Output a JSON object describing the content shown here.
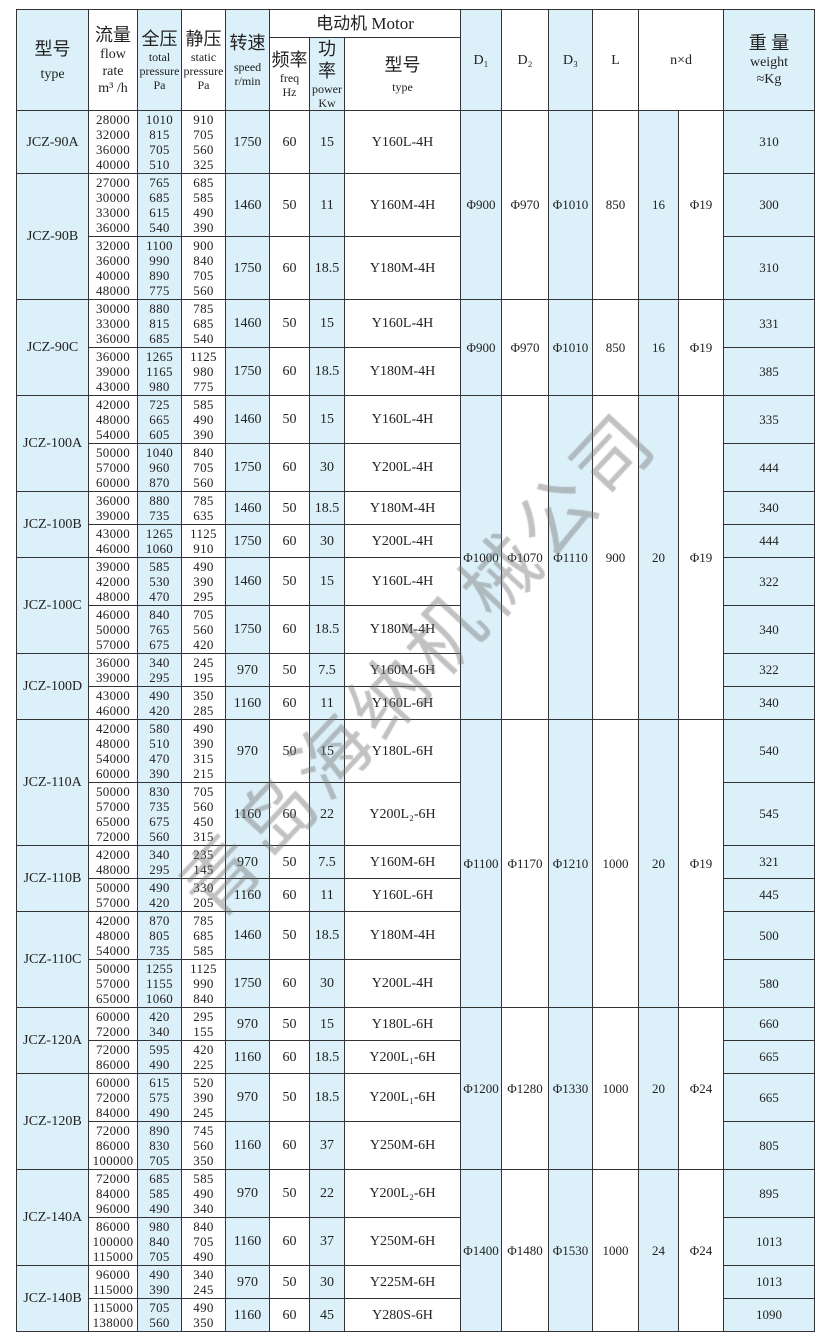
{
  "header": {
    "type": {
      "zh": "型号",
      "en": "type"
    },
    "flow": {
      "zh": "流量",
      "en1": "flow",
      "en2": "rate",
      "unit": "m³ /h"
    },
    "total": {
      "zh": "全压",
      "en1": "total",
      "en2": "pressure",
      "unit": "Pa"
    },
    "static": {
      "zh": "静压",
      "en1": "static",
      "en2": "pressure",
      "unit": "Pa"
    },
    "speed": {
      "zh": "转速",
      "en1": "speed",
      "unit": "r/min"
    },
    "motor": {
      "title": "电动机 Motor",
      "freq": {
        "zh": "频率",
        "en1": "freq",
        "unit": "Hz"
      },
      "power": {
        "zh": "功率",
        "en1": "power",
        "unit": "Kw"
      },
      "type": {
        "zh": "型号",
        "en": "type"
      }
    },
    "d1": "D₁",
    "d2": "D₂",
    "d3": "D₃",
    "l": "L",
    "nd": "n×d",
    "weight": {
      "zh": "重 量",
      "en1": "weight",
      "unit": "≈Kg"
    }
  },
  "watermark": "青岛海纳机械公司",
  "colors": {
    "highlight": "#dcf0f9",
    "border": "#333333"
  },
  "dim_groups": [
    {
      "d1": "Φ900",
      "d2": "Φ970",
      "d3": "Φ1010",
      "l": "850",
      "n": "16",
      "d": "Φ19"
    },
    {
      "d1": "Φ900",
      "d2": "Φ970",
      "d3": "Φ1010",
      "l": "850",
      "n": "16",
      "d": "Φ19"
    },
    {
      "d1": "Φ1000",
      "d2": "Φ1070",
      "d3": "Φ1110",
      "l": "900",
      "n": "20",
      "d": "Φ19"
    },
    {
      "d1": "Φ1100",
      "d2": "Φ1170",
      "d3": "Φ1210",
      "l": "1000",
      "n": "20",
      "d": "Φ19"
    },
    {
      "d1": "Φ1200",
      "d2": "Φ1280",
      "d3": "Φ1330",
      "l": "1000",
      "n": "20",
      "d": "Φ24"
    },
    {
      "d1": "Φ1400",
      "d2": "Φ1480",
      "d3": "Φ1530",
      "l": "1000",
      "n": "24",
      "d": "Φ24"
    }
  ],
  "models": [
    {
      "name": "JCZ-90A",
      "rows": [
        {
          "flow": [
            "28000",
            "32000",
            "36000",
            "40000"
          ],
          "total": [
            "1010",
            "815",
            "705",
            "510"
          ],
          "static": [
            "910",
            "705",
            "560",
            "325"
          ],
          "speed": "1750",
          "freq": "60",
          "power": "15",
          "motor": "Y160L-4H",
          "weight": "310"
        }
      ]
    },
    {
      "name": "JCZ-90B",
      "rows": [
        {
          "flow": [
            "27000",
            "30000",
            "33000",
            "36000"
          ],
          "total": [
            "765",
            "685",
            "615",
            "540"
          ],
          "static": [
            "685",
            "585",
            "490",
            "390"
          ],
          "speed": "1460",
          "freq": "50",
          "power": "11",
          "motor": "Y160M-4H",
          "weight": "300"
        },
        {
          "flow": [
            "32000",
            "36000",
            "40000",
            "48000"
          ],
          "total": [
            "1100",
            "990",
            "890",
            "775"
          ],
          "static": [
            "900",
            "840",
            "705",
            "560"
          ],
          "speed": "1750",
          "freq": "60",
          "power": "18.5",
          "motor": "Y180M-4H",
          "weight": "310"
        }
      ]
    },
    {
      "name": "JCZ-90C",
      "rows": [
        {
          "flow": [
            "30000",
            "33000",
            "36000"
          ],
          "total": [
            "880",
            "815",
            "685"
          ],
          "static": [
            "785",
            "685",
            "540"
          ],
          "speed": "1460",
          "freq": "50",
          "power": "15",
          "motor": "Y160L-4H",
          "weight": "331"
        },
        {
          "flow": [
            "36000",
            "39000",
            "43000"
          ],
          "total": [
            "1265",
            "1165",
            "980"
          ],
          "static": [
            "1125",
            "980",
            "775"
          ],
          "speed": "1750",
          "freq": "60",
          "power": "18.5",
          "motor": "Y180M-4H",
          "weight": "385"
        }
      ]
    },
    {
      "name": "JCZ-100A",
      "rows": [
        {
          "flow": [
            "42000",
            "48000",
            "54000"
          ],
          "total": [
            "725",
            "665",
            "605"
          ],
          "static": [
            "585",
            "490",
            "390"
          ],
          "speed": "1460",
          "freq": "50",
          "power": "15",
          "motor": "Y160L-4H",
          "weight": "335"
        },
        {
          "flow": [
            "50000",
            "57000",
            "60000"
          ],
          "total": [
            "1040",
            "960",
            "870"
          ],
          "static": [
            "840",
            "705",
            "560"
          ],
          "speed": "1750",
          "freq": "60",
          "power": "30",
          "motor": "Y200L-4H",
          "weight": "444"
        }
      ]
    },
    {
      "name": "JCZ-100B",
      "rows": [
        {
          "flow": [
            "36000",
            "39000"
          ],
          "total": [
            "880",
            "735"
          ],
          "static": [
            "785",
            "635"
          ],
          "speed": "1460",
          "freq": "50",
          "power": "18.5",
          "motor": "Y180M-4H",
          "weight": "340"
        },
        {
          "flow": [
            "43000",
            "46000"
          ],
          "total": [
            "1265",
            "1060"
          ],
          "static": [
            "1125",
            "910"
          ],
          "speed": "1750",
          "freq": "60",
          "power": "30",
          "motor": "Y200L-4H",
          "weight": "444"
        }
      ]
    },
    {
      "name": "JCZ-100C",
      "rows": [
        {
          "flow": [
            "39000",
            "42000",
            "48000"
          ],
          "total": [
            "585",
            "530",
            "470"
          ],
          "static": [
            "490",
            "390",
            "295"
          ],
          "speed": "1460",
          "freq": "50",
          "power": "15",
          "motor": "Y160L-4H",
          "weight": "322"
        },
        {
          "flow": [
            "46000",
            "50000",
            "57000"
          ],
          "total": [
            "840",
            "765",
            "675"
          ],
          "static": [
            "705",
            "560",
            "420"
          ],
          "speed": "1750",
          "freq": "60",
          "power": "18.5",
          "motor": "Y180M-4H",
          "weight": "340"
        }
      ]
    },
    {
      "name": "JCZ-100D",
      "rows": [
        {
          "flow": [
            "36000",
            "39000"
          ],
          "total": [
            "340",
            "295"
          ],
          "static": [
            "245",
            "195"
          ],
          "speed": "970",
          "freq": "50",
          "power": "7.5",
          "motor": "Y160M-6H",
          "weight": "322"
        },
        {
          "flow": [
            "43000",
            "46000"
          ],
          "total": [
            "490",
            "420"
          ],
          "static": [
            "350",
            "285"
          ],
          "speed": "1160",
          "freq": "60",
          "power": "11",
          "motor": "Y160L-6H",
          "weight": "340"
        }
      ]
    },
    {
      "name": "JCZ-110A",
      "rows": [
        {
          "flow": [
            "42000",
            "48000",
            "54000",
            "60000"
          ],
          "total": [
            "580",
            "510",
            "470",
            "390"
          ],
          "static": [
            "490",
            "390",
            "315",
            "215"
          ],
          "speed": "970",
          "freq": "50",
          "power": "15",
          "motor": "Y180L-6H",
          "weight": "540"
        },
        {
          "flow": [
            "50000",
            "57000",
            "65000",
            "72000"
          ],
          "total": [
            "830",
            "735",
            "675",
            "560"
          ],
          "static": [
            "705",
            "560",
            "450",
            "315"
          ],
          "speed": "1160",
          "freq": "60",
          "power": "22",
          "motor": "Y200L₂-6H",
          "weight": "545"
        }
      ]
    },
    {
      "name": "JCZ-110B",
      "rows": [
        {
          "flow": [
            "42000",
            "48000"
          ],
          "total": [
            "340",
            "295"
          ],
          "static": [
            "235",
            "145"
          ],
          "speed": "970",
          "freq": "50",
          "power": "7.5",
          "motor": "Y160M-6H",
          "weight": "321"
        },
        {
          "flow": [
            "50000",
            "57000"
          ],
          "total": [
            "490",
            "420"
          ],
          "static": [
            "330",
            "205"
          ],
          "speed": "1160",
          "freq": "60",
          "power": "11",
          "motor": "Y160L-6H",
          "weight": "445"
        }
      ]
    },
    {
      "name": "JCZ-110C",
      "rows": [
        {
          "flow": [
            "42000",
            "48000",
            "54000"
          ],
          "total": [
            "870",
            "805",
            "735"
          ],
          "static": [
            "785",
            "685",
            "585"
          ],
          "speed": "1460",
          "freq": "50",
          "power": "18.5",
          "motor": "Y180M-4H",
          "weight": "500"
        },
        {
          "flow": [
            "50000",
            "57000",
            "65000"
          ],
          "total": [
            "1255",
            "1155",
            "1060"
          ],
          "static": [
            "1125",
            "990",
            "840"
          ],
          "speed": "1750",
          "freq": "60",
          "power": "30",
          "motor": "Y200L-4H",
          "weight": "580"
        }
      ]
    },
    {
      "name": "JCZ-120A",
      "rows": [
        {
          "flow": [
            "60000",
            "72000"
          ],
          "total": [
            "420",
            "340"
          ],
          "static": [
            "295",
            "155"
          ],
          "speed": "970",
          "freq": "50",
          "power": "15",
          "motor": "Y180L-6H",
          "weight": "660"
        },
        {
          "flow": [
            "72000",
            "86000"
          ],
          "total": [
            "595",
            "490"
          ],
          "static": [
            "420",
            "225"
          ],
          "speed": "1160",
          "freq": "60",
          "power": "18.5",
          "motor": "Y200L₁-6H",
          "weight": "665"
        }
      ]
    },
    {
      "name": "JCZ-120B",
      "rows": [
        {
          "flow": [
            "60000",
            "72000",
            "84000"
          ],
          "total": [
            "615",
            "575",
            "490"
          ],
          "static": [
            "520",
            "390",
            "245"
          ],
          "speed": "970",
          "freq": "50",
          "power": "18.5",
          "motor": "Y200L₁-6H",
          "weight": "665"
        },
        {
          "flow": [
            "72000",
            "86000",
            "100000"
          ],
          "total": [
            "890",
            "830",
            "705"
          ],
          "static": [
            "745",
            "560",
            "350"
          ],
          "speed": "1160",
          "freq": "60",
          "power": "37",
          "motor": "Y250M-6H",
          "weight": "805"
        }
      ]
    },
    {
      "name": "JCZ-140A",
      "rows": [
        {
          "flow": [
            "72000",
            "84000",
            "96000"
          ],
          "total": [
            "685",
            "585",
            "490"
          ],
          "static": [
            "585",
            "490",
            "340"
          ],
          "speed": "970",
          "freq": "50",
          "power": "22",
          "motor": "Y200L₂-6H",
          "weight": "895"
        },
        {
          "flow": [
            "86000",
            "100000",
            "115000"
          ],
          "total": [
            "980",
            "840",
            "705"
          ],
          "static": [
            "840",
            "705",
            "490"
          ],
          "speed": "1160",
          "freq": "60",
          "power": "37",
          "motor": "Y250M-6H",
          "weight": "1013"
        }
      ]
    },
    {
      "name": "JCZ-140B",
      "rows": [
        {
          "flow": [
            "96000",
            "115000"
          ],
          "total": [
            "490",
            "390"
          ],
          "static": [
            "340",
            "245"
          ],
          "speed": "970",
          "freq": "50",
          "power": "30",
          "motor": "Y225M-6H",
          "weight": "1013"
        },
        {
          "flow": [
            "115000",
            "138000"
          ],
          "total": [
            "705",
            "560"
          ],
          "static": [
            "490",
            "350"
          ],
          "speed": "1160",
          "freq": "60",
          "power": "45",
          "motor": "Y280S-6H",
          "weight": "1090"
        }
      ]
    }
  ]
}
